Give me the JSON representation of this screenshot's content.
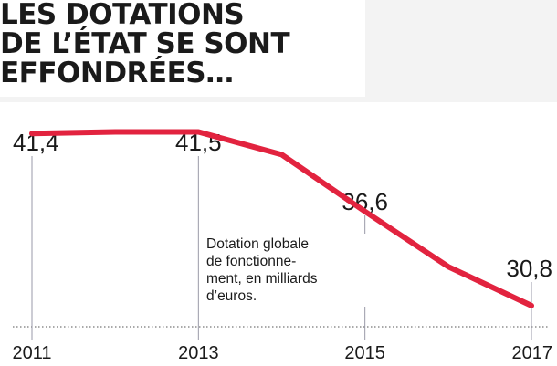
{
  "title_lines": [
    "LES DOTATIONS",
    "DE L’ÉTAT SE SONT",
    "EFFONDRÉES…"
  ],
  "colors": {
    "line": "#e2233f",
    "text": "#1a1a1a",
    "guide": "#9a9aa8",
    "baseline": "#777777"
  },
  "chart_data": {
    "type": "line",
    "title": "LES DOTATIONS DE L’ÉTAT SE SONT EFFONDRÉES…",
    "annotation": "Dotation globale de fonctionne- ment, en milliards d’euros.",
    "annotation_lines": [
      "Dotation globale",
      "de fonctionne-",
      "ment, en milliards",
      "d’euros."
    ],
    "x": [
      2011,
      2012,
      2013,
      2014,
      2015,
      2016,
      2017
    ],
    "x_ticks": [
      "2011",
      "2013",
      "2015",
      "2017"
    ],
    "values": [
      41.4,
      41.5,
      41.5,
      40.1,
      36.6,
      33.2,
      30.8
    ],
    "data_labels": [
      {
        "year": "2011",
        "value": 41.4,
        "label": "41,4"
      },
      {
        "year": "2013",
        "value": 41.5,
        "label": "41,5"
      },
      {
        "year": "2015",
        "value": 36.6,
        "label": "36,6"
      },
      {
        "year": "2017",
        "value": 30.8,
        "label": "30,8"
      }
    ],
    "ylim": [
      29.5,
      44
    ],
    "grid": false
  }
}
